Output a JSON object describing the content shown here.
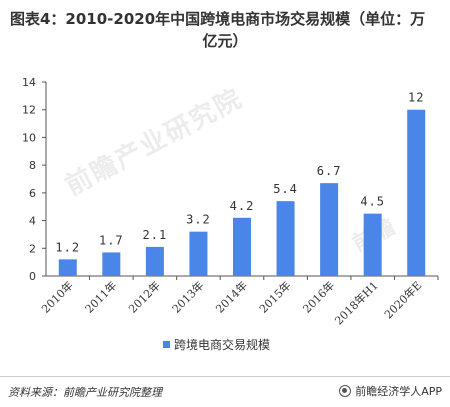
{
  "title_line1": "图表4：2010-2020年中国跨境电商市场交易规模（单位：万",
  "title_line2": "亿元）",
  "watermark": "前瞻产业研究院",
  "watermark2": "前瞻",
  "source": "资料来源：前瞻产业研究院整理",
  "brand": "前瞻经济学人APP",
  "colors": {
    "bar": "#4a86e8",
    "axis": "#555555",
    "text": "#333333"
  },
  "chart_data": {
    "type": "bar",
    "categories": [
      "2010年",
      "2011年",
      "2012年",
      "2013年",
      "2014年",
      "2015年",
      "2016年",
      "2018年H1",
      "2020年E"
    ],
    "series": [
      {
        "name": "跨境电商交易规模",
        "values": [
          1.2,
          1.7,
          2.1,
          3.2,
          4.2,
          5.4,
          6.7,
          4.5,
          12
        ]
      }
    ],
    "data_labels": [
      "1.2",
      "1.7",
      "2.1",
      "3.2",
      "4.2",
      "5.4",
      "6.7",
      "4.5",
      "12"
    ],
    "ylim": [
      0,
      14
    ],
    "yticks": [
      "0",
      "2",
      "4",
      "6",
      "8",
      "10",
      "12",
      "14"
    ],
    "legend_position": "bottom",
    "grid": false
  }
}
